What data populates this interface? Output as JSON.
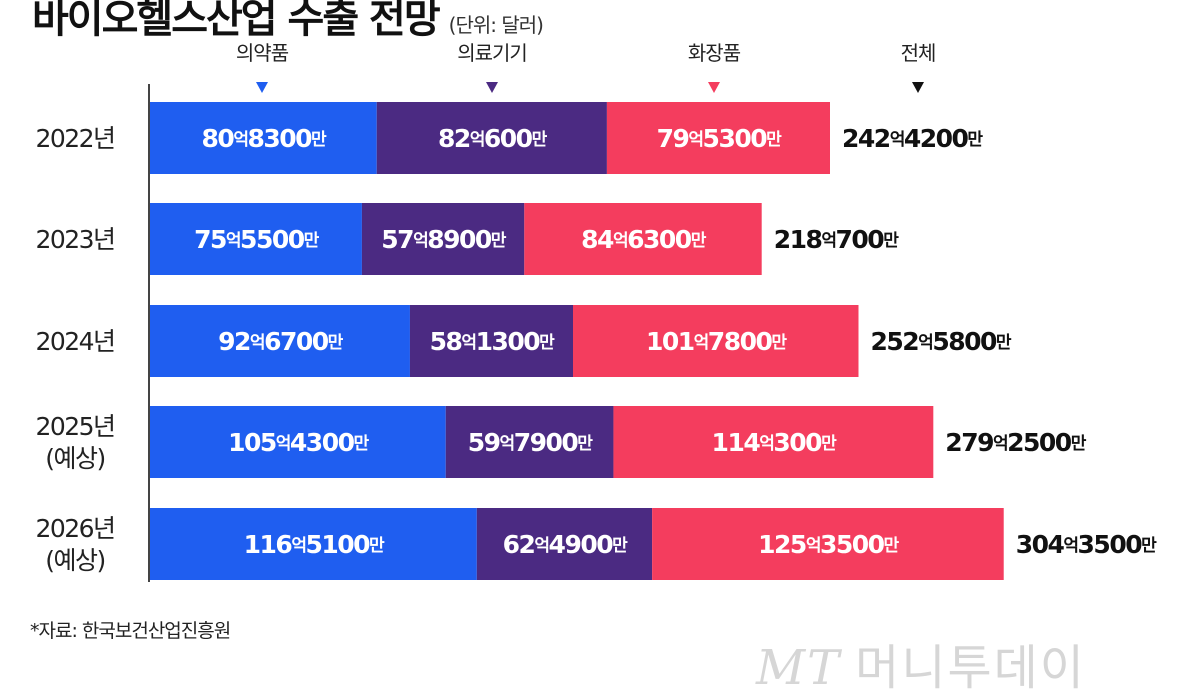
{
  "title": "바이오헬스산업 수출 전망",
  "unit": "(단위: 달러)",
  "source": "*자료: 한국보건산업진흥원",
  "watermark": {
    "logo": "MT",
    "name": "머니투데이"
  },
  "colors": {
    "pharma": "#1f5ef0",
    "device": "#4b2a82",
    "cosmetics": "#f43d5e",
    "label_on_bar": "#ffffff",
    "label_total": "#111111"
  },
  "chart_data": {
    "type": "bar",
    "orientation": "horizontal",
    "stacked": true,
    "unit": "달러",
    "categories": [
      [
        "2022년"
      ],
      [
        "2023년"
      ],
      [
        "2024년"
      ],
      [
        "2025년",
        "(예상)"
      ],
      [
        "2026년",
        "(예상)"
      ]
    ],
    "series": [
      {
        "name": "의약품",
        "color": "#1f5ef0",
        "values": [
          8083000000,
          7555000000,
          9267000000,
          10543000000,
          11651000000
        ],
        "labels": [
          [
            "80",
            "8300"
          ],
          [
            "75",
            "5500"
          ],
          [
            "92",
            "6700"
          ],
          [
            "105",
            "4300"
          ],
          [
            "116",
            "5100"
          ]
        ]
      },
      {
        "name": "의료기기",
        "color": "#4b2a82",
        "values": [
          8206000000,
          5789000000,
          5813000000,
          5979000000,
          6249000000
        ],
        "labels": [
          [
            "82",
            "600"
          ],
          [
            "57",
            "8900"
          ],
          [
            "58",
            "1300"
          ],
          [
            "59",
            "7900"
          ],
          [
            "62",
            "4900"
          ]
        ]
      },
      {
        "name": "화장품",
        "color": "#f43d5e",
        "values": [
          7953000000,
          8463000000,
          10178000000,
          11403000000,
          12535000000
        ],
        "labels": [
          [
            "79",
            "5300"
          ],
          [
            "84",
            "6300"
          ],
          [
            "101",
            "7800"
          ],
          [
            "114",
            "300"
          ],
          [
            "125",
            "3500"
          ]
        ]
      }
    ],
    "total": {
      "name": "전체",
      "color": "#111111",
      "values": [
        24242000000,
        21807000000,
        25258000000,
        27925000000,
        30435000000
      ],
      "labels": [
        [
          "242",
          "4200"
        ],
        [
          "218",
          "700"
        ],
        [
          "252",
          "5800"
        ],
        [
          "279",
          "2500"
        ],
        [
          "304",
          "3500"
        ]
      ]
    },
    "unit_words": {
      "eok": "억",
      "man": "만"
    },
    "grid": false,
    "legend": "top"
  }
}
